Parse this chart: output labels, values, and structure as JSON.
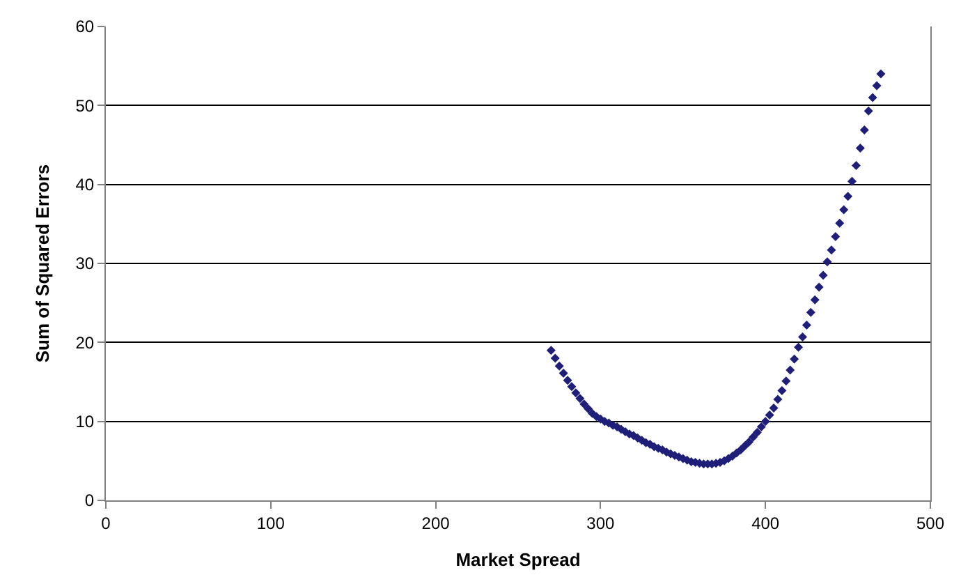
{
  "chart_data": {
    "type": "scatter",
    "xlabel": "Market Spread",
    "ylabel": "Sum of Squared Errors",
    "xlim": [
      0,
      500
    ],
    "xticks": [
      0,
      100,
      200,
      300,
      400,
      500
    ],
    "ylim": [
      0,
      60
    ],
    "yticks": [
      0,
      10,
      20,
      30,
      40,
      50,
      60
    ],
    "grid": "y",
    "marker": "diamond",
    "x": [
      270,
      272.5,
      275,
      277.5,
      280,
      282.5,
      285,
      287.5,
      290,
      292.5,
      295,
      297.5,
      300,
      302.5,
      305,
      307.5,
      310,
      312.5,
      315,
      317.5,
      320,
      322.5,
      325,
      327.5,
      330,
      332.5,
      335,
      337.5,
      340,
      342.5,
      345,
      347.5,
      350,
      352.5,
      355,
      357.5,
      360,
      362.5,
      365,
      367.5,
      370,
      372.5,
      375,
      377.5,
      380,
      382.5,
      385,
      387.5,
      390,
      392.5,
      395,
      397.5,
      400,
      402.5,
      405,
      407.5,
      410,
      412.5,
      415,
      417.5,
      420,
      422.5,
      425,
      427.5,
      430,
      432.5,
      435,
      437.5,
      440,
      442.5,
      445,
      447.5,
      450,
      452.5,
      455,
      457.5,
      460,
      462.5,
      465,
      467.5,
      470
    ],
    "series": [
      {
        "color": "#1f1f7a",
        "values": [
          19.0,
          18.0,
          17.0,
          16.1,
          15.2,
          14.4,
          13.6,
          12.9,
          12.2,
          11.6,
          11.0,
          10.6,
          10.3,
          10.0,
          9.8,
          9.5,
          9.3,
          9.0,
          8.7,
          8.4,
          8.2,
          7.9,
          7.6,
          7.3,
          7.1,
          6.8,
          6.6,
          6.4,
          6.1,
          5.9,
          5.7,
          5.5,
          5.3,
          5.1,
          4.9,
          4.8,
          4.7,
          4.6,
          4.6,
          4.6,
          4.7,
          4.8,
          5.0,
          5.3,
          5.6,
          6.0,
          6.4,
          6.9,
          7.4,
          8.0,
          8.6,
          9.3,
          10.0,
          10.8,
          11.7,
          12.8,
          13.9,
          15.1,
          16.5,
          17.9,
          19.4,
          20.7,
          22.2,
          23.8,
          25.4,
          27.0,
          28.5,
          30.2,
          31.7,
          33.4,
          35.1,
          36.8,
          38.5,
          40.4,
          42.4,
          44.6,
          46.9,
          49.3,
          51.0,
          52.5,
          54.0
        ]
      }
    ]
  }
}
